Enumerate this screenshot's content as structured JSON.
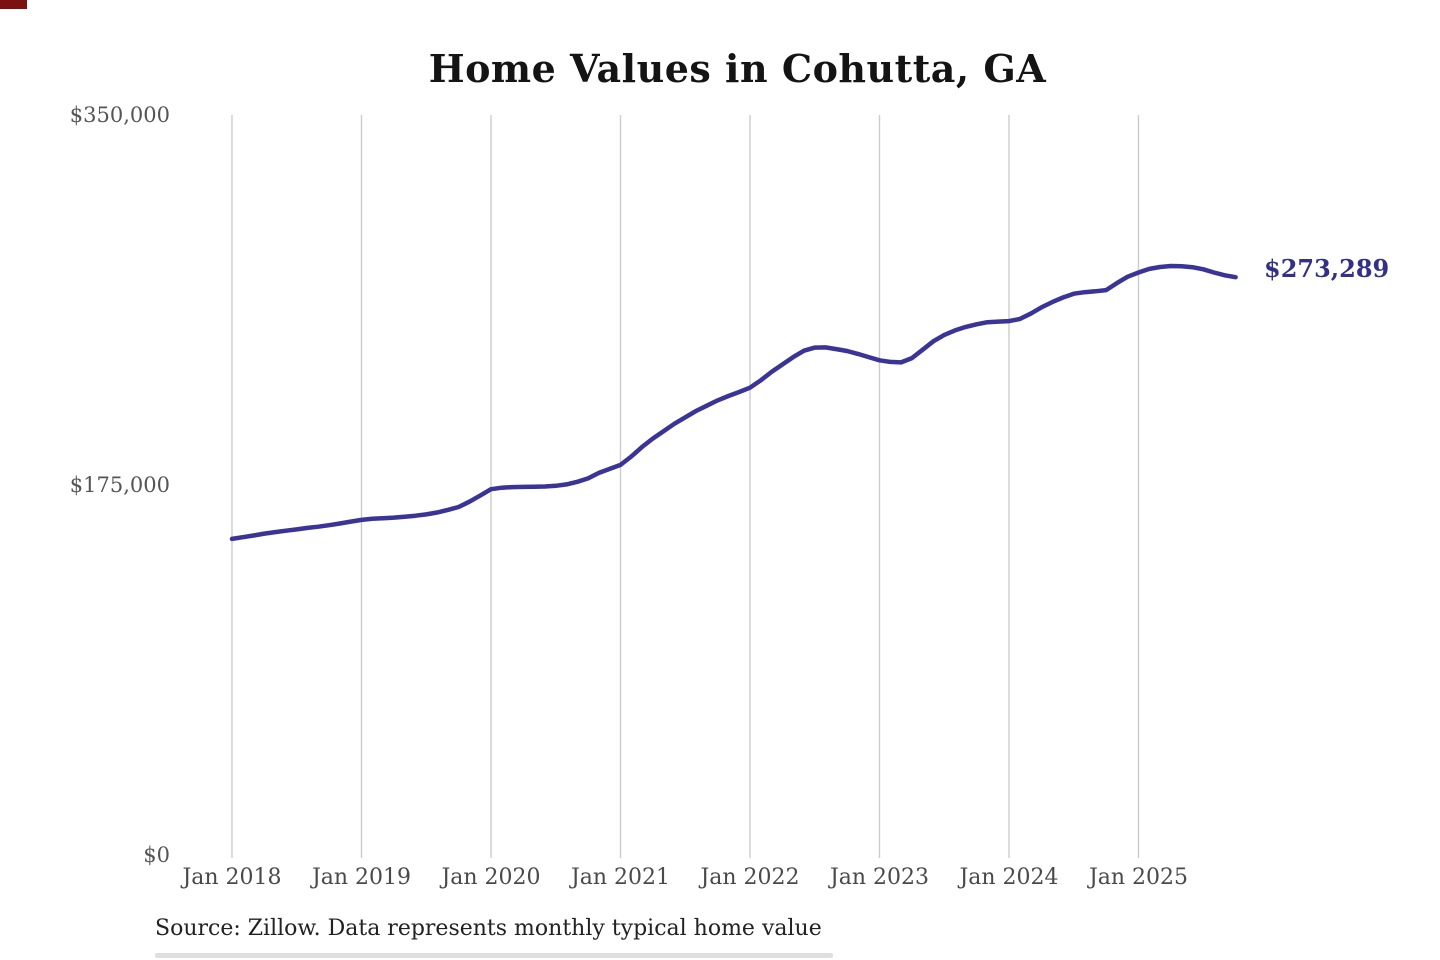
{
  "chart": {
    "title": "Home Values in Cohutta, GA",
    "end_label": "$273,289",
    "source": "Source: Zillow. Data represents monthly typical home value",
    "colors": {
      "line": "#3b3498",
      "end_label": "#333086",
      "grid": "#cccccc",
      "x_axis_text": "#4a4a4a",
      "y_axis_text": "#555555",
      "title_text": "#141414",
      "source_text": "#222222"
    }
  },
  "chart_data": {
    "type": "line",
    "title": "Home Values in Cohutta, GA",
    "xlabel": "",
    "ylabel": "",
    "ylim": [
      0,
      350000
    ],
    "grid": "vertical-only",
    "legend": "none",
    "y_ticks": [
      {
        "label": "$0",
        "value": 0
      },
      {
        "label": "$175,000",
        "value": 175000
      },
      {
        "label": "$350,000",
        "value": 350000
      }
    ],
    "x_ticks": [
      {
        "label": "Jan 2018",
        "year_index": 0
      },
      {
        "label": "Jan 2019",
        "year_index": 1
      },
      {
        "label": "Jan 2020",
        "year_index": 2
      },
      {
        "label": "Jan 2021",
        "year_index": 3
      },
      {
        "label": "Jan 2022",
        "year_index": 4
      },
      {
        "label": "Jan 2023",
        "year_index": 5
      },
      {
        "label": "Jan 2024",
        "year_index": 6
      },
      {
        "label": "Jan 2025",
        "year_index": 7
      }
    ],
    "final_value": 273289,
    "annotation": {
      "text": "$273,289",
      "position": "line-end"
    },
    "series": [
      {
        "name": "Monthly typical home value",
        "color": "#3b3498",
        "x": [
          "2018-01",
          "2018-02",
          "2018-03",
          "2018-04",
          "2018-05",
          "2018-06",
          "2018-07",
          "2018-08",
          "2018-09",
          "2018-10",
          "2018-11",
          "2018-12",
          "2019-01",
          "2019-02",
          "2019-03",
          "2019-04",
          "2019-05",
          "2019-06",
          "2019-07",
          "2019-08",
          "2019-09",
          "2019-10",
          "2019-11",
          "2019-12",
          "2020-01",
          "2020-02",
          "2020-03",
          "2020-04",
          "2020-05",
          "2020-06",
          "2020-07",
          "2020-08",
          "2020-09",
          "2020-10",
          "2020-11",
          "2020-12",
          "2021-01",
          "2021-02",
          "2021-03",
          "2021-04",
          "2021-05",
          "2021-06",
          "2021-07",
          "2021-08",
          "2021-09",
          "2021-10",
          "2021-11",
          "2021-12",
          "2022-01",
          "2022-02",
          "2022-03",
          "2022-04",
          "2022-05",
          "2022-06",
          "2022-07",
          "2022-08",
          "2022-09",
          "2022-10",
          "2022-11",
          "2022-12",
          "2023-01",
          "2023-02",
          "2023-03",
          "2023-04",
          "2023-05",
          "2023-06",
          "2023-07",
          "2023-08",
          "2023-09",
          "2023-10",
          "2023-11",
          "2023-12",
          "2024-01",
          "2024-02",
          "2024-03",
          "2024-04",
          "2024-05",
          "2024-06",
          "2024-07",
          "2024-08",
          "2024-09",
          "2024-10",
          "2024-11",
          "2024-12",
          "2025-01",
          "2025-02",
          "2025-03",
          "2025-04",
          "2025-05",
          "2025-06",
          "2025-07",
          "2025-08",
          "2025-09",
          "2025-10"
        ],
        "values": [
          149500,
          150300,
          151100,
          152000,
          152700,
          153400,
          154000,
          154700,
          155300,
          156000,
          156800,
          157700,
          158500,
          159000,
          159300,
          159600,
          160000,
          160500,
          161100,
          162000,
          163200,
          164600,
          167100,
          170000,
          173000,
          173700,
          174000,
          174100,
          174200,
          174300,
          174600,
          175300,
          176500,
          178100,
          180700,
          182600,
          184500,
          188500,
          193000,
          197000,
          200500,
          204000,
          207000,
          210000,
          212500,
          215000,
          217100,
          219000,
          221000,
          224500,
          228500,
          232000,
          235500,
          238500,
          240000,
          240100,
          239300,
          238400,
          237000,
          235500,
          234000,
          233200,
          233000,
          235000,
          239000,
          243000,
          246000,
          248100,
          249800,
          251000,
          252000,
          252300,
          252500,
          253500,
          256000,
          259000,
          261500,
          263700,
          265500,
          266200,
          266600,
          267200,
          270500,
          273500,
          275500,
          277200,
          278100,
          278600,
          278500,
          278000,
          277000,
          275500,
          274200,
          273289
        ]
      }
    ]
  }
}
